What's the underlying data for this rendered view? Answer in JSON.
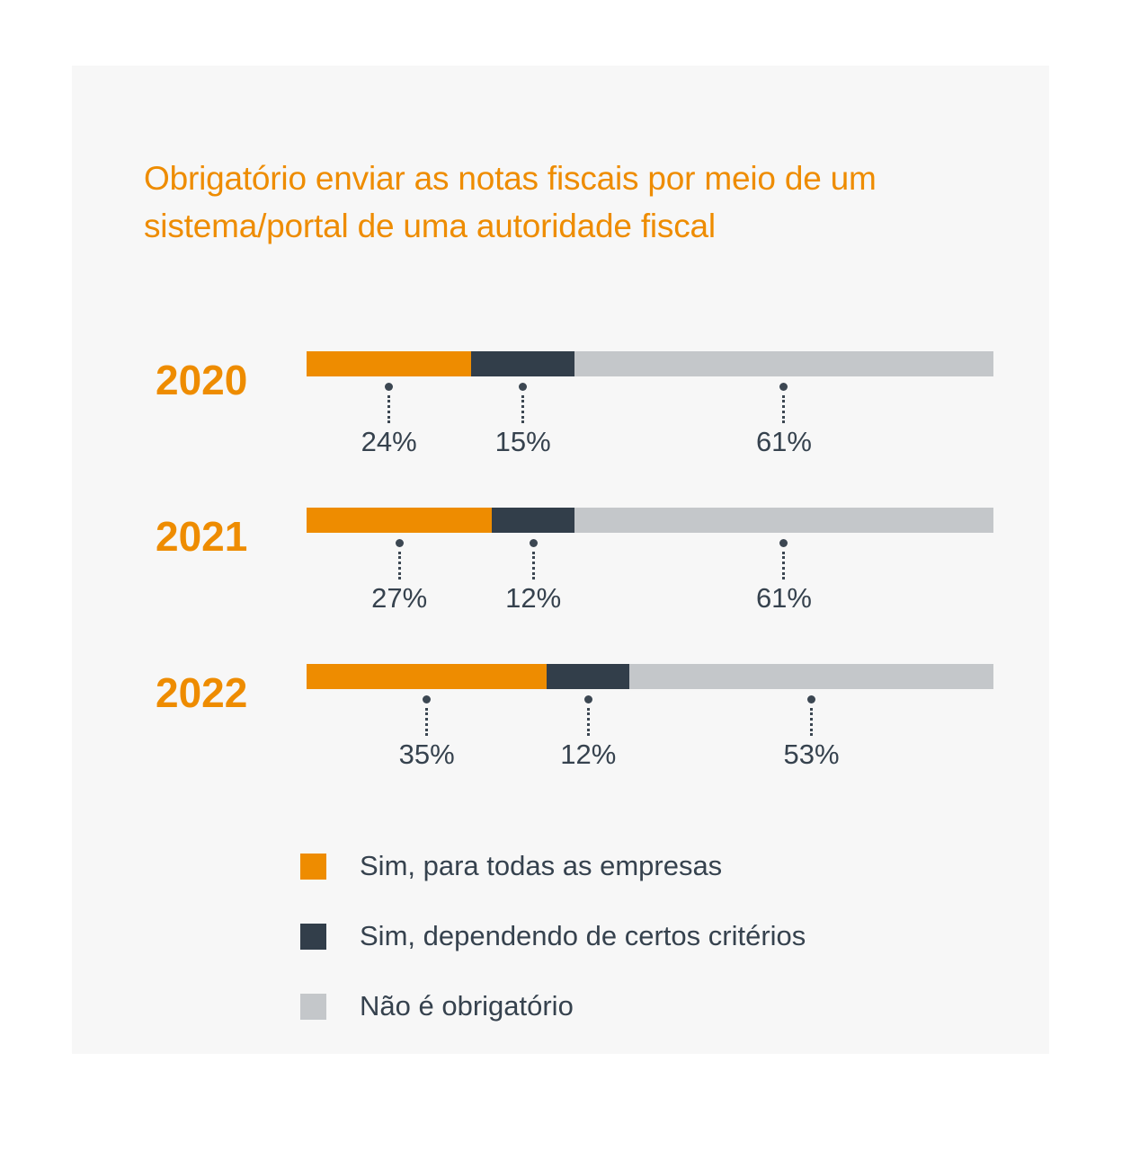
{
  "page": {
    "background": "#FFFFFF",
    "panel_background": "#F7F7F7"
  },
  "title": {
    "text": "Obrigatório enviar as notas fiscais por meio de um sistema/portal de uma autoridade fiscal",
    "lines": [
      "Obrigatório enviar as notas fiscais por meio de um",
      "sistema/portal de uma autoridade fiscal"
    ],
    "color": "#EE8C00"
  },
  "chart_data": {
    "type": "bar",
    "orientation": "horizontal",
    "stacked": true,
    "unit": "%",
    "xlim": [
      0,
      100
    ],
    "grid": false,
    "legend_position": "bottom",
    "title": "Obrigatório enviar as notas fiscais por meio de um sistema/portal de uma autoridade fiscal",
    "categories": [
      "2020",
      "2021",
      "2022"
    ],
    "series": [
      {
        "name": "Sim, para todas as empresas",
        "color": "#EE8C00",
        "values": [
          24,
          27,
          35
        ]
      },
      {
        "name": "Sim, dependendo de certos critérios",
        "color": "#323E4A",
        "values": [
          15,
          12,
          12
        ]
      },
      {
        "name": "Não é obrigatório",
        "color": "#C4C7CA",
        "values": [
          61,
          61,
          53
        ]
      }
    ],
    "value_labels": [
      [
        "24%",
        "15%",
        "61%"
      ],
      [
        "27%",
        "12%",
        "61%"
      ],
      [
        "35%",
        "12%",
        "53%"
      ]
    ]
  },
  "styles": {
    "year_label_color": "#EE8C00",
    "value_label_color": "#36424E",
    "legend_text_color": "#36424E",
    "leader_line_color": "#3C4752"
  }
}
